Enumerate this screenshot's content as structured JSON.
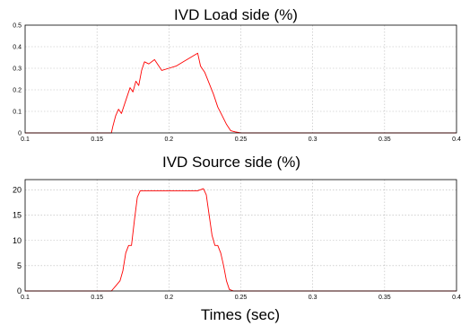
{
  "chart_data": [
    {
      "type": "line",
      "title": "IVD Load side (%)",
      "xlabel": "",
      "ylabel": "",
      "xlim": [
        0.1,
        0.4
      ],
      "ylim": [
        0,
        0.5
      ],
      "xticks": [
        "0.1",
        "0.15",
        "0.2",
        "0.25",
        "0.3",
        "0.35",
        "0.4"
      ],
      "yticks": [
        "0",
        "0.1",
        "0.2",
        "0.3",
        "0.4",
        "0.5"
      ],
      "grid": true,
      "color": "#ff0000",
      "series": [
        {
          "x": [
            0.1,
            0.16,
            0.161,
            0.163,
            0.165,
            0.167,
            0.169,
            0.171,
            0.173,
            0.175,
            0.177,
            0.179,
            0.181,
            0.183,
            0.186,
            0.19,
            0.195,
            0.2,
            0.205,
            0.21,
            0.215,
            0.22,
            0.222,
            0.225,
            0.228,
            0.231,
            0.234,
            0.237,
            0.24,
            0.243,
            0.246,
            0.25,
            0.3,
            0.35,
            0.4
          ],
          "y": [
            0.0,
            0.0,
            0.03,
            0.08,
            0.11,
            0.09,
            0.13,
            0.17,
            0.21,
            0.19,
            0.24,
            0.22,
            0.29,
            0.33,
            0.32,
            0.34,
            0.29,
            0.3,
            0.31,
            0.33,
            0.35,
            0.37,
            0.31,
            0.28,
            0.23,
            0.18,
            0.12,
            0.08,
            0.04,
            0.01,
            0.005,
            0.0,
            0.0,
            0.0,
            0.0
          ]
        }
      ]
    },
    {
      "type": "line",
      "title": "IVD Source side (%)",
      "xlabel": "Times (sec)",
      "ylabel": "",
      "xlim": [
        0.1,
        0.4
      ],
      "ylim": [
        0,
        22
      ],
      "xticks": [
        "0.1",
        "0.15",
        "0.2",
        "0.25",
        "0.3",
        "0.35",
        "0.4"
      ],
      "yticks": [
        "0",
        "5",
        "10",
        "15",
        "20"
      ],
      "grid": true,
      "color": "#ff0000",
      "series": [
        {
          "x": [
            0.1,
            0.16,
            0.163,
            0.166,
            0.168,
            0.17,
            0.172,
            0.174,
            0.176,
            0.178,
            0.18,
            0.2,
            0.22,
            0.224,
            0.226,
            0.228,
            0.23,
            0.232,
            0.234,
            0.236,
            0.238,
            0.24,
            0.242,
            0.245,
            0.25,
            0.3,
            0.35,
            0.4
          ],
          "y": [
            0.0,
            0.0,
            1.0,
            2.0,
            4.0,
            7.5,
            9.0,
            9.0,
            14.0,
            18.5,
            19.8,
            19.8,
            19.8,
            20.2,
            19.0,
            15.0,
            11.0,
            9.0,
            9.0,
            7.5,
            5.0,
            2.0,
            0.3,
            0.0,
            0.0,
            0.0,
            0.0,
            0.0
          ]
        }
      ]
    }
  ]
}
